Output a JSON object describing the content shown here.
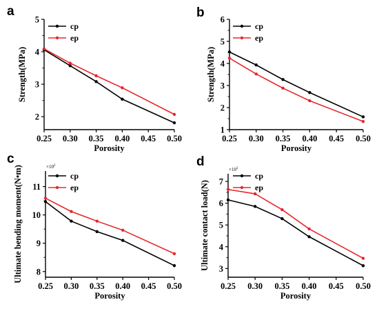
{
  "chart_data": [
    {
      "panel": "a",
      "type": "line",
      "x": [
        0.25,
        0.3,
        0.35,
        0.4,
        0.5
      ],
      "x_ticks": [
        "0.25",
        "0.30",
        "0.35",
        "0.40",
        "0.45",
        "0.50"
      ],
      "y_ticks": [
        "2",
        "3",
        "4",
        "5"
      ],
      "xlabel": "Porosity",
      "ylabel": "Strength(MPa)",
      "xlim": [
        0.25,
        0.5
      ],
      "ylim": [
        1.6,
        5.0
      ],
      "multiplier": "",
      "series": [
        {
          "name": "cp",
          "color": "#000000",
          "values": [
            4.06,
            3.57,
            3.08,
            2.54,
            1.81
          ]
        },
        {
          "name": "ep",
          "color": "#e8262b",
          "values": [
            4.09,
            3.65,
            3.26,
            2.89,
            2.07
          ]
        }
      ]
    },
    {
      "panel": "b",
      "type": "line",
      "x": [
        0.25,
        0.3,
        0.35,
        0.4,
        0.5
      ],
      "x_ticks": [
        "0.25",
        "0.30",
        "0.35",
        "0.40",
        "0.45",
        "0.50"
      ],
      "y_ticks": [
        "1",
        "2",
        "3",
        "4",
        "5",
        "6"
      ],
      "xlabel": "Porosity",
      "ylabel": "Strength(MPa)",
      "xlim": [
        0.25,
        0.5
      ],
      "ylim": [
        1.0,
        6.0
      ],
      "multiplier": "",
      "series": [
        {
          "name": "cp",
          "color": "#000000",
          "values": [
            4.52,
            3.93,
            3.27,
            2.68,
            1.58
          ]
        },
        {
          "name": "ep",
          "color": "#e8262b",
          "values": [
            4.24,
            3.52,
            2.88,
            2.31,
            1.37
          ]
        }
      ]
    },
    {
      "panel": "c",
      "type": "line",
      "x": [
        0.25,
        0.3,
        0.35,
        0.4,
        0.5
      ],
      "x_ticks": [
        "0.25",
        "0.30",
        "0.35",
        "0.40",
        "0.45",
        "0.50"
      ],
      "y_ticks": [
        "8",
        "9",
        "10",
        "11"
      ],
      "xlabel": "Porosity",
      "ylabel": "Ultimate bending moment(N•m)",
      "xlim": [
        0.25,
        0.5
      ],
      "ylim": [
        7.8,
        11.55
      ],
      "multiplier": "×10",
      "multiplier_exp": "2",
      "series": [
        {
          "name": "cp",
          "color": "#000000",
          "values": [
            10.47,
            9.78,
            9.41,
            9.1,
            8.21
          ]
        },
        {
          "name": "ep",
          "color": "#e8262b",
          "values": [
            10.59,
            10.12,
            9.78,
            9.46,
            8.63
          ]
        }
      ]
    },
    {
      "panel": "d",
      "type": "line",
      "x": [
        0.25,
        0.3,
        0.35,
        0.4,
        0.5
      ],
      "x_ticks": [
        "0.25",
        "0.30",
        "0.35",
        "0.40",
        "0.45",
        "0.50"
      ],
      "y_ticks": [
        "3",
        "4",
        "5",
        "6",
        "7"
      ],
      "xlabel": "Porosity",
      "ylabel": "Ultimate contact load(N)",
      "xlim": [
        0.25,
        0.5
      ],
      "ylim": [
        2.6,
        7.35
      ],
      "multiplier": "×10",
      "multiplier_exp": "3",
      "series": [
        {
          "name": "cp",
          "color": "#000000",
          "values": [
            6.15,
            5.85,
            5.29,
            4.46,
            3.13
          ]
        },
        {
          "name": "ep",
          "color": "#e8262b",
          "values": [
            6.63,
            6.43,
            5.7,
            4.82,
            3.47
          ]
        }
      ]
    }
  ]
}
